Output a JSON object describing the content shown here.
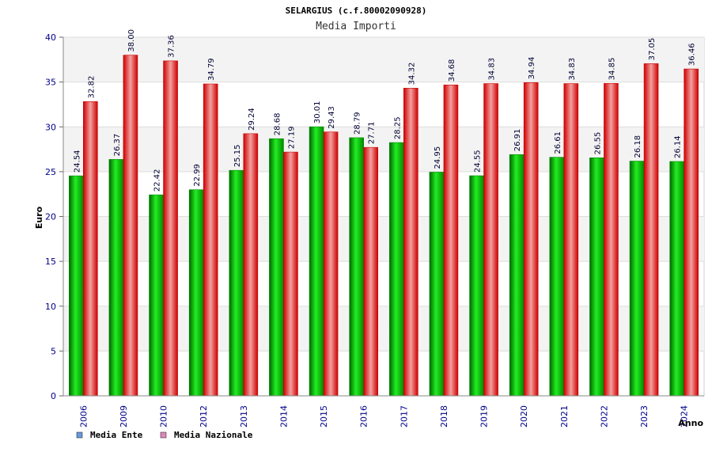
{
  "chart_data": {
    "type": "bar",
    "title": "SELARGIUS (c.f.80002090928)",
    "subtitle": "Media Importi",
    "xlabel": "Anno",
    "ylabel": "Euro",
    "ylim": [
      0,
      40
    ],
    "yticks": [
      0,
      5,
      10,
      15,
      20,
      25,
      30,
      35,
      40
    ],
    "ytick_labels": [
      "0",
      "5",
      "10",
      "15",
      "20",
      "25",
      "30",
      "35",
      "40"
    ],
    "grid": true,
    "legend_position": "bottom-left",
    "categories": [
      "2006",
      "2009",
      "2010",
      "2012",
      "2013",
      "2014",
      "2015",
      "2016",
      "2017",
      "2018",
      "2019",
      "2020",
      "2021",
      "2022",
      "2023",
      "2024"
    ],
    "series": [
      {
        "name": "Media Ente",
        "color": "#00bb00",
        "legend_color": "#6699dd",
        "values": [
          24.54,
          26.37,
          22.42,
          22.99,
          25.15,
          28.68,
          30.01,
          28.79,
          28.25,
          24.95,
          24.55,
          26.91,
          26.61,
          26.55,
          26.18,
          26.14
        ],
        "labels": [
          "24.54",
          "26.37",
          "22.42",
          "22.99",
          "25.15",
          "28.68",
          "30.01",
          "28.79",
          "28.25",
          "24.95",
          "24.55",
          "26.91",
          "26.61",
          "26.55",
          "26.18",
          "26.14"
        ]
      },
      {
        "name": "Media Nazionale",
        "color": "#ee2222",
        "legend_color": "#dd88bb",
        "values": [
          32.82,
          38.0,
          37.36,
          34.79,
          29.24,
          27.19,
          29.43,
          27.71,
          34.32,
          34.68,
          34.83,
          34.94,
          34.83,
          34.85,
          37.05,
          36.46
        ],
        "labels": [
          "32.82",
          "38.00",
          "37.36",
          "34.79",
          "29.24",
          "27.19",
          "29.43",
          "27.71",
          "34.32",
          "34.68",
          "34.83",
          "34.94",
          "34.83",
          "34.85",
          "37.05",
          "36.46"
        ]
      }
    ]
  }
}
